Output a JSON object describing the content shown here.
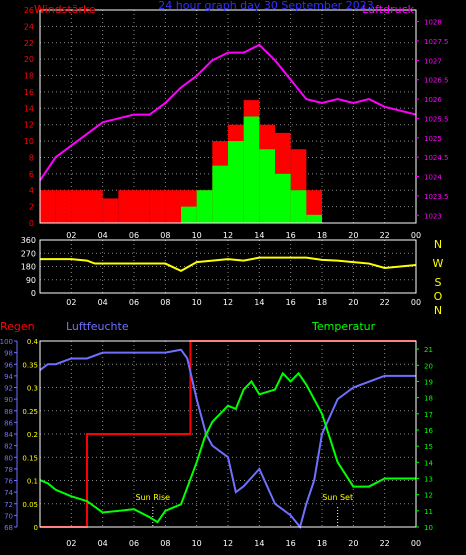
{
  "panel_top": {
    "left_label": "Windstärke",
    "title": "24 hour graph day 30 September 2023",
    "right_label": "Luftdruck"
  },
  "panel_mid": {
    "dir_letters": [
      "N",
      "W",
      "S",
      "O",
      "N"
    ]
  },
  "panel_bottom": {
    "rain_label": "Regen",
    "humidity_label": "Luftfeuchte",
    "temp_label": "Temperatur",
    "sunrise_label": "Sun Rise",
    "sunset_label": "Sun Set"
  },
  "colors": {
    "background": "#000000",
    "axes": "#ffffff",
    "grid": "#8a8a8a",
    "wind_gust": "#ff0000",
    "wind_avg": "#00ff00",
    "pressure": "#ff00ff",
    "direction": "#ffff00",
    "rain": "#ff0000",
    "humidity": "#7070ff",
    "temperature": "#00ff00",
    "rain_axis": "#ffff00",
    "humidity_axis": "#7070ff",
    "temp_axis": "#00ff00"
  },
  "chart_data": [
    {
      "type": "bar",
      "x_ticks": [
        "02",
        "04",
        "06",
        "08",
        "10",
        "12",
        "14",
        "16",
        "18",
        "20",
        "22",
        "00"
      ],
      "xlim": [
        0,
        24
      ],
      "y_left_ticks": [
        0,
        2,
        4,
        6,
        8,
        10,
        12,
        14,
        16,
        18,
        20,
        22,
        24,
        26
      ],
      "ylim_left": [
        0,
        26
      ],
      "y_right_ticks": [
        1023,
        1023.5,
        1024,
        1024.5,
        1025,
        1025.5,
        1026,
        1026.5,
        1027,
        1027.5,
        1028
      ],
      "ylim_right": [
        1022.8,
        1028.3
      ],
      "grid": true,
      "series": [
        {
          "name": "Windstärke",
          "kind": "gust",
          "x": [
            0.5,
            1.5,
            2.5,
            3.5,
            4.5,
            5.5,
            6.5,
            7.5,
            8.5,
            9.5,
            10.5,
            11.5,
            12.5,
            13.5,
            14.5,
            15.5,
            16.5,
            17.5
          ],
          "values": [
            4,
            4,
            4,
            4,
            3,
            4,
            4,
            4,
            4,
            4,
            4,
            10,
            12,
            15,
            12,
            11,
            9,
            4
          ]
        },
        {
          "name": "",
          "kind": "avg",
          "x": [
            0.5,
            1.5,
            2.5,
            3.5,
            4.5,
            5.5,
            6.5,
            7.5,
            8.5,
            9.5,
            10.5,
            11.5,
            12.5,
            13.5,
            14.5,
            15.5,
            16.5,
            17.5
          ],
          "values": [
            0,
            0,
            0,
            0,
            0,
            0,
            0,
            0,
            0,
            2,
            4,
            7,
            10,
            13,
            9,
            6,
            4,
            1
          ]
        },
        {
          "name": "Luftdruck",
          "kind": "pressure",
          "x": [
            0,
            1,
            2,
            3,
            4,
            5,
            6,
            7,
            8,
            9,
            10,
            11,
            12,
            13,
            14,
            15,
            16,
            17,
            18,
            19,
            20,
            21,
            22,
            23,
            24
          ],
          "values": [
            1023.9,
            1024.5,
            1024.8,
            1025.1,
            1025.4,
            1025.5,
            1025.6,
            1025.6,
            1025.9,
            1026.3,
            1026.6,
            1027.0,
            1027.2,
            1027.2,
            1027.4,
            1027.0,
            1026.5,
            1026.0,
            1025.9,
            1026.0,
            1025.9,
            1026.0,
            1025.8,
            1025.7,
            1025.6
          ]
        }
      ]
    },
    {
      "type": "line",
      "x_ticks": [
        "02",
        "04",
        "06",
        "08",
        "10",
        "12",
        "14",
        "16",
        "18",
        "20",
        "22",
        "00"
      ],
      "xlim": [
        0,
        24
      ],
      "y_ticks": [
        0,
        90,
        180,
        270,
        360
      ],
      "ylim": [
        0,
        360
      ],
      "grid": true,
      "series": [
        {
          "name": "",
          "kind": "direction",
          "x": [
            0,
            1,
            2,
            3,
            3.5,
            5,
            6,
            7,
            8,
            9,
            10,
            11,
            12,
            13,
            14,
            15,
            16,
            17,
            18,
            19,
            20,
            21,
            22,
            23,
            24
          ],
          "values": [
            230,
            230,
            230,
            220,
            200,
            200,
            200,
            200,
            200,
            150,
            210,
            220,
            230,
            220,
            240,
            240,
            240,
            240,
            225,
            220,
            210,
            200,
            170,
            180,
            190
          ]
        }
      ]
    },
    {
      "type": "line",
      "x_ticks": [
        "02",
        "04",
        "06",
        "08",
        "10",
        "12",
        "14",
        "16",
        "18",
        "20",
        "22",
        "00"
      ],
      "xlim": [
        0,
        24
      ],
      "y_rain_ticks": [
        0,
        0.05,
        0.1,
        0.15,
        0.2,
        0.25,
        0.3,
        0.35,
        0.4
      ],
      "ylim_rain": [
        0,
        0.4
      ],
      "y_humidity_ticks": [
        68,
        70,
        72,
        74,
        76,
        78,
        80,
        82,
        84,
        86,
        88,
        90,
        92,
        94,
        96,
        98,
        100
      ],
      "ylim_humidity": [
        68,
        100
      ],
      "y_temp_ticks": [
        10,
        11,
        12,
        13,
        14,
        15,
        16,
        17,
        18,
        19,
        20,
        21
      ],
      "ylim_temp": [
        10,
        21.5
      ],
      "grid": true,
      "annotations": [
        {
          "label": "Sun Rise",
          "x": 7.2
        },
        {
          "label": "Sun Set",
          "x": 19.0
        }
      ],
      "series": [
        {
          "name": "Regen",
          "kind": "rain",
          "x": [
            0,
            3,
            3,
            9.6,
            9.6,
            24
          ],
          "values": [
            0,
            0,
            0.2,
            0.2,
            0.4,
            0.4
          ]
        },
        {
          "name": "Luftfeuchte",
          "kind": "humidity",
          "x": [
            0,
            0.5,
            1,
            2,
            3,
            4,
            5,
            6,
            7,
            8,
            9,
            9.4,
            10,
            10.6,
            11,
            12,
            12.5,
            13,
            14,
            15,
            16,
            16.6,
            17,
            17.5,
            18,
            19,
            20,
            21,
            22,
            23,
            24
          ],
          "values": [
            95,
            96,
            96,
            97,
            97,
            98,
            98,
            98,
            98,
            98,
            98.5,
            97,
            90,
            84,
            82,
            80,
            74,
            75,
            78,
            72,
            70,
            68,
            72,
            76,
            84,
            90,
            92,
            93,
            94,
            94,
            94
          ]
        },
        {
          "name": "Temperatur",
          "kind": "temperature",
          "x": [
            0,
            0.5,
            1,
            2,
            3,
            4,
            5,
            6,
            7,
            7.5,
            8,
            9,
            10,
            10.5,
            11,
            12,
            12.5,
            13,
            13.5,
            14,
            15,
            15.5,
            16,
            16.5,
            17,
            18,
            19,
            20,
            21,
            22,
            23,
            24
          ],
          "values": [
            12.9,
            12.7,
            12.3,
            11.9,
            11.6,
            10.9,
            11.0,
            11.1,
            10.6,
            10.3,
            11.0,
            11.4,
            14.0,
            15.5,
            16.5,
            17.5,
            17.3,
            18.5,
            19.0,
            18.2,
            18.5,
            19.5,
            19.0,
            19.5,
            18.8,
            17.0,
            14.0,
            12.5,
            12.5,
            13.0,
            13.0,
            13.0
          ]
        }
      ]
    }
  ]
}
